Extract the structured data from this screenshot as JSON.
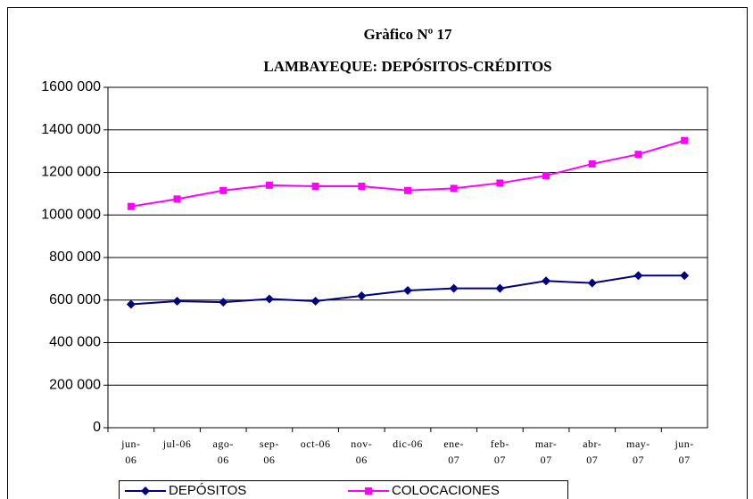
{
  "chart_data": {
    "type": "line",
    "title": "Gràfico Nº 17",
    "subtitle": "LAMBAYEQUE: DEPÓSITOS-CRÉDITOS",
    "categories": [
      "jun-06",
      "jul-06",
      "ago-06",
      "sep-06",
      "oct-06",
      "nov-06",
      "dic-06",
      "ene-07",
      "feb-07",
      "mar-07",
      "abr-07",
      "may-07",
      "jun-07"
    ],
    "series": [
      {
        "name": "DEPÓSITOS",
        "color": "#000080",
        "marker": "diamond",
        "values": [
          580000,
          595000,
          590000,
          605000,
          595000,
          620000,
          645000,
          655000,
          655000,
          690000,
          680000,
          715000,
          715000
        ]
      },
      {
        "name": "COLOCACIONES",
        "color": "#ff00ff",
        "marker": "square",
        "values": [
          1040000,
          1075000,
          1115000,
          1140000,
          1135000,
          1135000,
          1115000,
          1125000,
          1150000,
          1185000,
          1240000,
          1285000,
          1350000
        ]
      }
    ],
    "ylim": [
      0,
      1600000
    ],
    "yticks": [
      0,
      {
        "value": 200000,
        "label": "200 000"
      },
      {
        "value": 400000,
        "label": "400 000"
      },
      {
        "value": 600000,
        "label": "600 000"
      },
      {
        "value": 800000,
        "label": "800 000"
      },
      {
        "value": 1000000,
        "label": "1000 000"
      },
      {
        "value": 1200000,
        "label": "1200 000"
      },
      {
        "value": 1400000,
        "label": "1400 000"
      },
      {
        "value": 1600000,
        "label": "1600 000"
      }
    ],
    "grid": true,
    "legend": "bottom"
  }
}
